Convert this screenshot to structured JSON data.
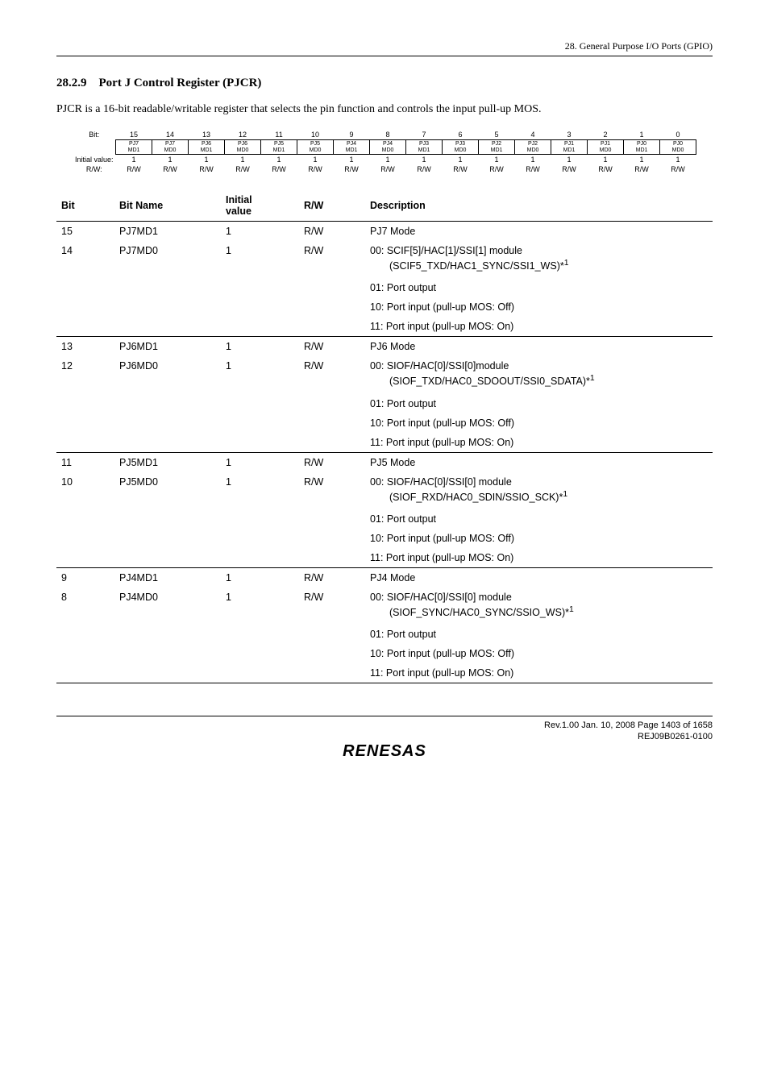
{
  "header": {
    "chapter": "28.  General Purpose I/O Ports (GPIO)"
  },
  "section": {
    "number": "28.2.9",
    "title": "Port J Control Register (PJCR)"
  },
  "intro": "PJCR is a 16-bit readable/writable register that selects the pin function and controls the input pull-up MOS.",
  "bitdiagram": {
    "labels": {
      "bit": "Bit:",
      "initial": "Initial value:",
      "rw": "R/W:"
    },
    "bits": [
      "15",
      "14",
      "13",
      "12",
      "11",
      "10",
      "9",
      "8",
      "7",
      "6",
      "5",
      "4",
      "3",
      "2",
      "1",
      "0"
    ],
    "cells": [
      "PJ7\nMD1",
      "PJ7\nMD0",
      "PJ6\nMD1",
      "PJ6\nMD0",
      "PJ5\nMD1",
      "PJ5\nMD0",
      "PJ4\nMD1",
      "PJ4\nMD0",
      "PJ3\nMD1",
      "PJ3\nMD0",
      "PJ2\nMD1",
      "PJ2\nMD0",
      "PJ1\nMD1",
      "PJ1\nMD0",
      "PJ0\nMD1",
      "PJ0\nMD0"
    ],
    "initial": [
      "1",
      "1",
      "1",
      "1",
      "1",
      "1",
      "1",
      "1",
      "1",
      "1",
      "1",
      "1",
      "1",
      "1",
      "1",
      "1"
    ],
    "rw": [
      "R/W",
      "R/W",
      "R/W",
      "R/W",
      "R/W",
      "R/W",
      "R/W",
      "R/W",
      "R/W",
      "R/W",
      "R/W",
      "R/W",
      "R/W",
      "R/W",
      "R/W",
      "R/W"
    ]
  },
  "columns": {
    "c0": "Bit",
    "c1": "Bit Name",
    "c2": "Initial value",
    "c2a": "Initial",
    "c2b": "value",
    "c3": "R/W",
    "c4": "Description"
  },
  "groups": [
    {
      "rows": [
        {
          "bit": "15",
          "name": "PJ7MD1",
          "init": "1",
          "rw": "R/W",
          "desc": "PJ7 Mode"
        },
        {
          "bit": "14",
          "name": "PJ7MD0",
          "init": "1",
          "rw": "R/W",
          "desc": "00: SCIF[5]/HAC[1]/SSI[1] module",
          "descSub": "(SCIF5_TXD/HAC1_SYNC/SSI1_WS)*",
          "note": "1"
        }
      ],
      "extras": [
        "01: Port output",
        "10: Port input (pull-up MOS: Off)",
        "11: Port input (pull-up MOS: On)"
      ]
    },
    {
      "rows": [
        {
          "bit": "13",
          "name": "PJ6MD1",
          "init": "1",
          "rw": "R/W",
          "desc": "PJ6 Mode"
        },
        {
          "bit": "12",
          "name": "PJ6MD0",
          "init": "1",
          "rw": "R/W",
          "desc": "00: SIOF/HAC[0]/SSI[0]module",
          "descSub": "(SIOF_TXD/HAC0_SDOOUT/SSI0_SDATA)*",
          "note": "1"
        }
      ],
      "extras": [
        "01: Port output",
        "10: Port input (pull-up MOS: Off)",
        "11: Port input (pull-up MOS: On)"
      ]
    },
    {
      "rows": [
        {
          "bit": "11",
          "name": "PJ5MD1",
          "init": "1",
          "rw": "R/W",
          "desc": "PJ5 Mode"
        },
        {
          "bit": "10",
          "name": "PJ5MD0",
          "init": "1",
          "rw": "R/W",
          "desc": "00: SIOF/HAC[0]/SSI[0] module",
          "descSub": "(SIOF_RXD/HAC0_SDIN/SSIO_SCK)*",
          "note": "1"
        }
      ],
      "extras": [
        "01: Port output",
        "10: Port input (pull-up MOS: Off)",
        "11: Port input (pull-up MOS: On)"
      ]
    },
    {
      "rows": [
        {
          "bit": "9",
          "name": "PJ4MD1",
          "init": "1",
          "rw": "R/W",
          "desc": "PJ4 Mode"
        },
        {
          "bit": "8",
          "name": "PJ4MD0",
          "init": "1",
          "rw": "R/W",
          "desc": "00: SIOF/HAC[0]/SSI[0] module",
          "descSub": "(SIOF_SYNC/HAC0_SYNC/SSIO_WS)*",
          "note": "1"
        }
      ],
      "extras": [
        "01: Port output",
        "10: Port input (pull-up MOS: Off)",
        "11: Port input (pull-up MOS: On)"
      ]
    }
  ],
  "footer": {
    "line1": "Rev.1.00  Jan. 10, 2008  Page 1403 of 1658",
    "line2": "REJ09B0261-0100",
    "logo": "RENESAS"
  },
  "style": {
    "colWidths": {
      "bit": "60px",
      "name": "120px",
      "init": "85px",
      "rw": "70px"
    }
  }
}
